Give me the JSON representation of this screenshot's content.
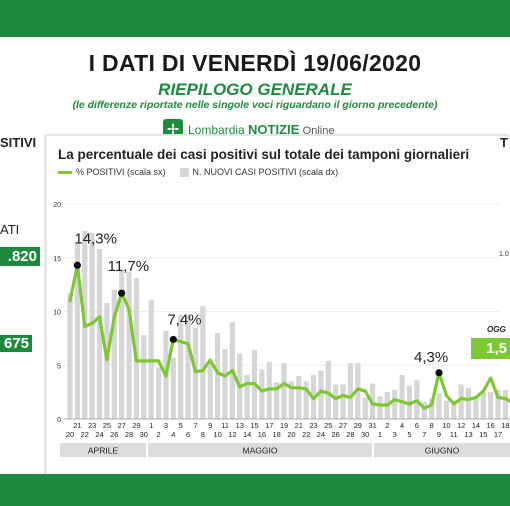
{
  "header": {
    "title": "I DATI DI VENERDÌ 19/06/2020",
    "subtitle": "RIEPILOGO GENERALE",
    "note": "(le differenze riportate nelle singole voci riguardano il giorno precedente)"
  },
  "logo": {
    "brand": "Lombardia",
    "notizie": "NOTIZIE",
    "online": "Online"
  },
  "side_fragments": {
    "left_header": "SITIVI",
    "left_label": "ATI",
    "left_value_1": ".820",
    "left_value_2": "675",
    "right_header": "T",
    "right_oggi": "OGG",
    "right_value": "1,5"
  },
  "colors": {
    "brand_green": "#1e8a3e",
    "line_green": "#7cc832",
    "bars": "#d6d6d6"
  },
  "chart_data": {
    "type": "line",
    "title": "La percentuale dei casi positivi sul totale dei tamponi giornalieri",
    "legend": [
      "% POSITIVI (scala sx)",
      "N. NUOVI CASI POSITIVI (scala dx)"
    ],
    "x_ticks": [
      "20",
      "21",
      "22",
      "23",
      "24",
      "25",
      "26",
      "27",
      "28",
      "29",
      "30",
      "1",
      "2",
      "3",
      "4",
      "5",
      "6",
      "7",
      "8",
      "9",
      "10",
      "11",
      "12",
      "13",
      "14",
      "15",
      "16",
      "17",
      "18",
      "19",
      "20",
      "21",
      "22",
      "23",
      "24",
      "25",
      "26",
      "27",
      "28",
      "29",
      "30",
      "31",
      "1",
      "2",
      "3",
      "4",
      "5",
      "6",
      "7",
      "8",
      "9",
      "10",
      "11",
      "12",
      "13",
      "14",
      "15",
      "16",
      "17",
      "18"
    ],
    "months": [
      "APRILE",
      "MAGGIO",
      "GIUGNO"
    ],
    "y_left": {
      "min": 0,
      "max": 20,
      "ticks": [
        "0",
        "5",
        "10",
        "15",
        "20"
      ]
    },
    "y_right_visible_tick": "1.0",
    "series": [
      {
        "name": "% POSITIVI (scala sx)",
        "values": [
          11.0,
          14.3,
          8.6,
          8.9,
          9.5,
          5.5,
          9.5,
          11.7,
          10.2,
          5.4,
          5.4,
          5.4,
          5.4,
          4.0,
          7.4,
          7.2,
          7.0,
          4.4,
          4.5,
          5.5,
          4.3,
          4.0,
          4.5,
          3.0,
          3.3,
          3.3,
          2.6,
          2.8,
          2.8,
          3.3,
          2.9,
          2.9,
          2.8,
          1.9,
          2.6,
          2.4,
          1.9,
          2.2,
          2.0,
          2.8,
          2.6,
          1.4,
          1.3,
          1.3,
          1.8,
          1.6,
          1.4,
          1.7,
          1.0,
          1.3,
          4.3,
          2.2,
          1.4,
          1.9,
          1.8,
          2.0,
          2.6,
          3.8,
          2.0,
          1.9,
          1.5
        ]
      },
      {
        "name": "N. NUOVI CASI POSITIVI (scala dx)",
        "bar_heights_left_scale": [
          11.7,
          16.4,
          17.5,
          17.3,
          15.8,
          10.8,
          12.0,
          13.8,
          13.7,
          13.1,
          7.8,
          11.1,
          4.8,
          8.2,
          5.7,
          9.7,
          9.7,
          8.5,
          10.5,
          5.2,
          8.0,
          6.5,
          9.0,
          6.1,
          4.1,
          6.4,
          4.6,
          5.3,
          3.4,
          5.2,
          3.5,
          4.0,
          3.5,
          4.1,
          4.5,
          5.4,
          3.2,
          3.2,
          5.2,
          5.2,
          2.0,
          3.3,
          2.1,
          2.5,
          2.7,
          4.1,
          3.1,
          3.6,
          1.6,
          1.9,
          2.4,
          1.7,
          1.3,
          3.2,
          2.9,
          1.9,
          2.5,
          2.5,
          2.7,
          2.7,
          2.0
        ]
      }
    ],
    "annotations": [
      "14,3%",
      "11,7%",
      "7,4%",
      "4,3%"
    ]
  }
}
